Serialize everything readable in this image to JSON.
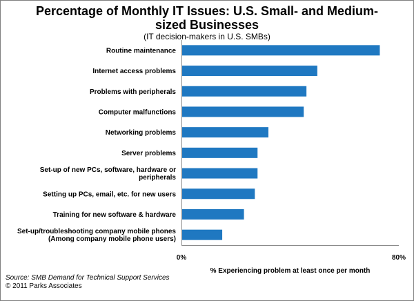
{
  "chart_data": {
    "type": "bar",
    "orientation": "horizontal",
    "title": "Percentage of Monthly IT Issues: U.S. Small- and Medium-sized Businesses",
    "subtitle": "(IT decision-makers in U.S. SMBs)",
    "categories": [
      [
        "Routine maintenance"
      ],
      [
        "Internet access problems"
      ],
      [
        "Problems with peripherals"
      ],
      [
        "Computer malfunctions"
      ],
      [
        "Networking problems"
      ],
      [
        "Server problems"
      ],
      [
        "Set-up of new PCs, software, hardware or",
        "peripherals"
      ],
      [
        "Setting up PCs, email, etc. for new users"
      ],
      [
        "Training for new software & hardware"
      ],
      [
        "Set-up/troubleshooting  company mobile phones",
        "(Among company mobile phone users)"
      ]
    ],
    "values": [
      73,
      50,
      46,
      45,
      32,
      28,
      28,
      27,
      23,
      15
    ],
    "xlim": [
      0,
      80
    ],
    "xticks": [
      "0%",
      "80%"
    ],
    "xlabel": "% Experiencing problem at least once per month",
    "bar_color": "#1f78c1",
    "grid": false
  },
  "footer": {
    "source": "Source: SMB Demand for Technical Support Services",
    "copyright": "© 2011 Parks Associates"
  }
}
